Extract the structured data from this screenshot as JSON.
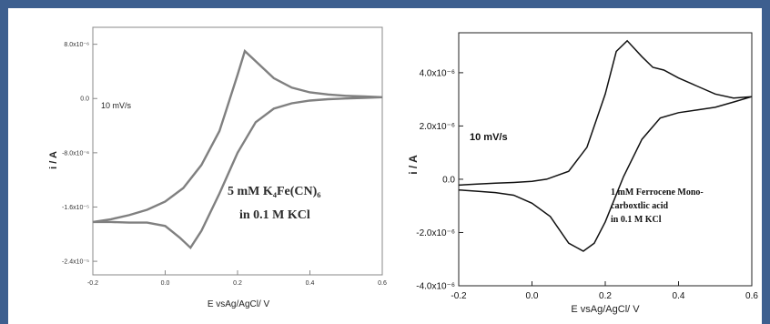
{
  "chart_data": [
    {
      "type": "line",
      "title": "",
      "xlabel": "E vsAg/AgCl/ V",
      "ylabel": "i / A",
      "xlim": [
        -0.2,
        0.6
      ],
      "ylim": [
        -2.6e-05,
        1.05e-05
      ],
      "x_ticks": [
        -0.2,
        0.0,
        0.2,
        0.4,
        0.6
      ],
      "x_tick_labels": [
        "-0.2",
        "0.0",
        "0.2",
        "0.4",
        "0.6"
      ],
      "y_ticks": [
        8e-06,
        0.0,
        -8e-06,
        -1.6e-05,
        -2.4e-05
      ],
      "y_tick_labels": [
        "8.0x10⁻⁶",
        "0.0",
        "-8.0x10⁻⁶",
        "-1.6x10⁻⁵",
        "-2.4x10⁻⁵"
      ],
      "grid": false,
      "color": "#808080",
      "annotations": [
        "10 mV/s",
        "5 mM K₄Fe(CN)₆",
        "in 0.1 M KCl"
      ],
      "series": [
        {
          "x": [
            -0.2,
            -0.15,
            -0.1,
            -0.05,
            0.0,
            0.05,
            0.1,
            0.15,
            0.17,
            0.2,
            0.22,
            0.25,
            0.3,
            0.35,
            0.4,
            0.45,
            0.5,
            0.55,
            0.6,
            0.55,
            0.5,
            0.45,
            0.4,
            0.35,
            0.3,
            0.25,
            0.2,
            0.15,
            0.1,
            0.07,
            0.04,
            0.0,
            -0.05,
            -0.1,
            -0.15,
            -0.2
          ],
          "y": [
            -1.82e-05,
            -1.78e-05,
            -1.72e-05,
            -1.64e-05,
            -1.52e-05,
            -1.32e-05,
            -9.8e-06,
            -4.8e-06,
            -1.5e-06,
            3.5e-06,
            7e-06,
            5.5e-06,
            3e-06,
            1.6e-06,
            9e-07,
            6e-07,
            4e-07,
            3e-07,
            2e-07,
            1e-07,
            0.0,
            -1e-07,
            -3e-07,
            -7e-07,
            -1.5e-06,
            -3.5e-06,
            -8e-06,
            -1.4e-05,
            -1.95e-05,
            -2.2e-05,
            -2.05e-05,
            -1.88e-05,
            -1.83e-05,
            -1.83e-05,
            -1.82e-05,
            -1.82e-05
          ]
        }
      ]
    },
    {
      "type": "line",
      "title": "",
      "xlabel": "E vsAg/AgCl/ V",
      "ylabel": "i / A",
      "xlim": [
        -0.2,
        0.6
      ],
      "ylim": [
        -4e-06,
        5.5e-06
      ],
      "x_ticks": [
        -0.2,
        0.0,
        0.2,
        0.4,
        0.6
      ],
      "x_tick_labels": [
        "-0.2",
        "0.0",
        "0.2",
        "0.4",
        "0.6"
      ],
      "y_ticks": [
        4e-06,
        2e-06,
        0.0,
        -2e-06,
        -4e-06
      ],
      "y_tick_labels": [
        "4.0x10⁻⁶",
        "2.0x10⁻⁶",
        "0.0",
        "-2.0x10⁻⁶",
        "-4.0x10⁻⁶"
      ],
      "grid": false,
      "color": "#000000",
      "annotations": [
        "10 mV/s",
        "1 mM Ferrocene Mono-",
        "carboxtlic acid",
        "in 0.1 M KCl"
      ],
      "series": [
        {
          "x": [
            -0.2,
            -0.15,
            -0.1,
            -0.05,
            0.0,
            0.04,
            0.1,
            0.15,
            0.2,
            0.23,
            0.26,
            0.3,
            0.33,
            0.36,
            0.4,
            0.45,
            0.5,
            0.55,
            0.6,
            0.55,
            0.5,
            0.45,
            0.4,
            0.35,
            0.3,
            0.25,
            0.2,
            0.17,
            0.14,
            0.1,
            0.05,
            0.0,
            -0.05,
            -0.1,
            -0.15,
            -0.2
          ],
          "y": [
            -2.2e-07,
            -1.8e-07,
            -1.5e-07,
            -1.2e-07,
            -8e-08,
            0.0,
            3e-07,
            1.2e-06,
            3.2e-06,
            4.8e-06,
            5.2e-06,
            4.6e-06,
            4.2e-06,
            4.1e-06,
            3.8e-06,
            3.5e-06,
            3.2e-06,
            3.05e-06,
            3.1e-06,
            2.9e-06,
            2.7e-06,
            2.6e-06,
            2.5e-06,
            2.3e-06,
            1.5e-06,
            1e-07,
            -1.6e-06,
            -2.4e-06,
            -2.7e-06,
            -2.4e-06,
            -1.4e-06,
            -9e-07,
            -6e-07,
            -5e-07,
            -4.5e-07,
            -4e-07
          ]
        }
      ]
    }
  ]
}
